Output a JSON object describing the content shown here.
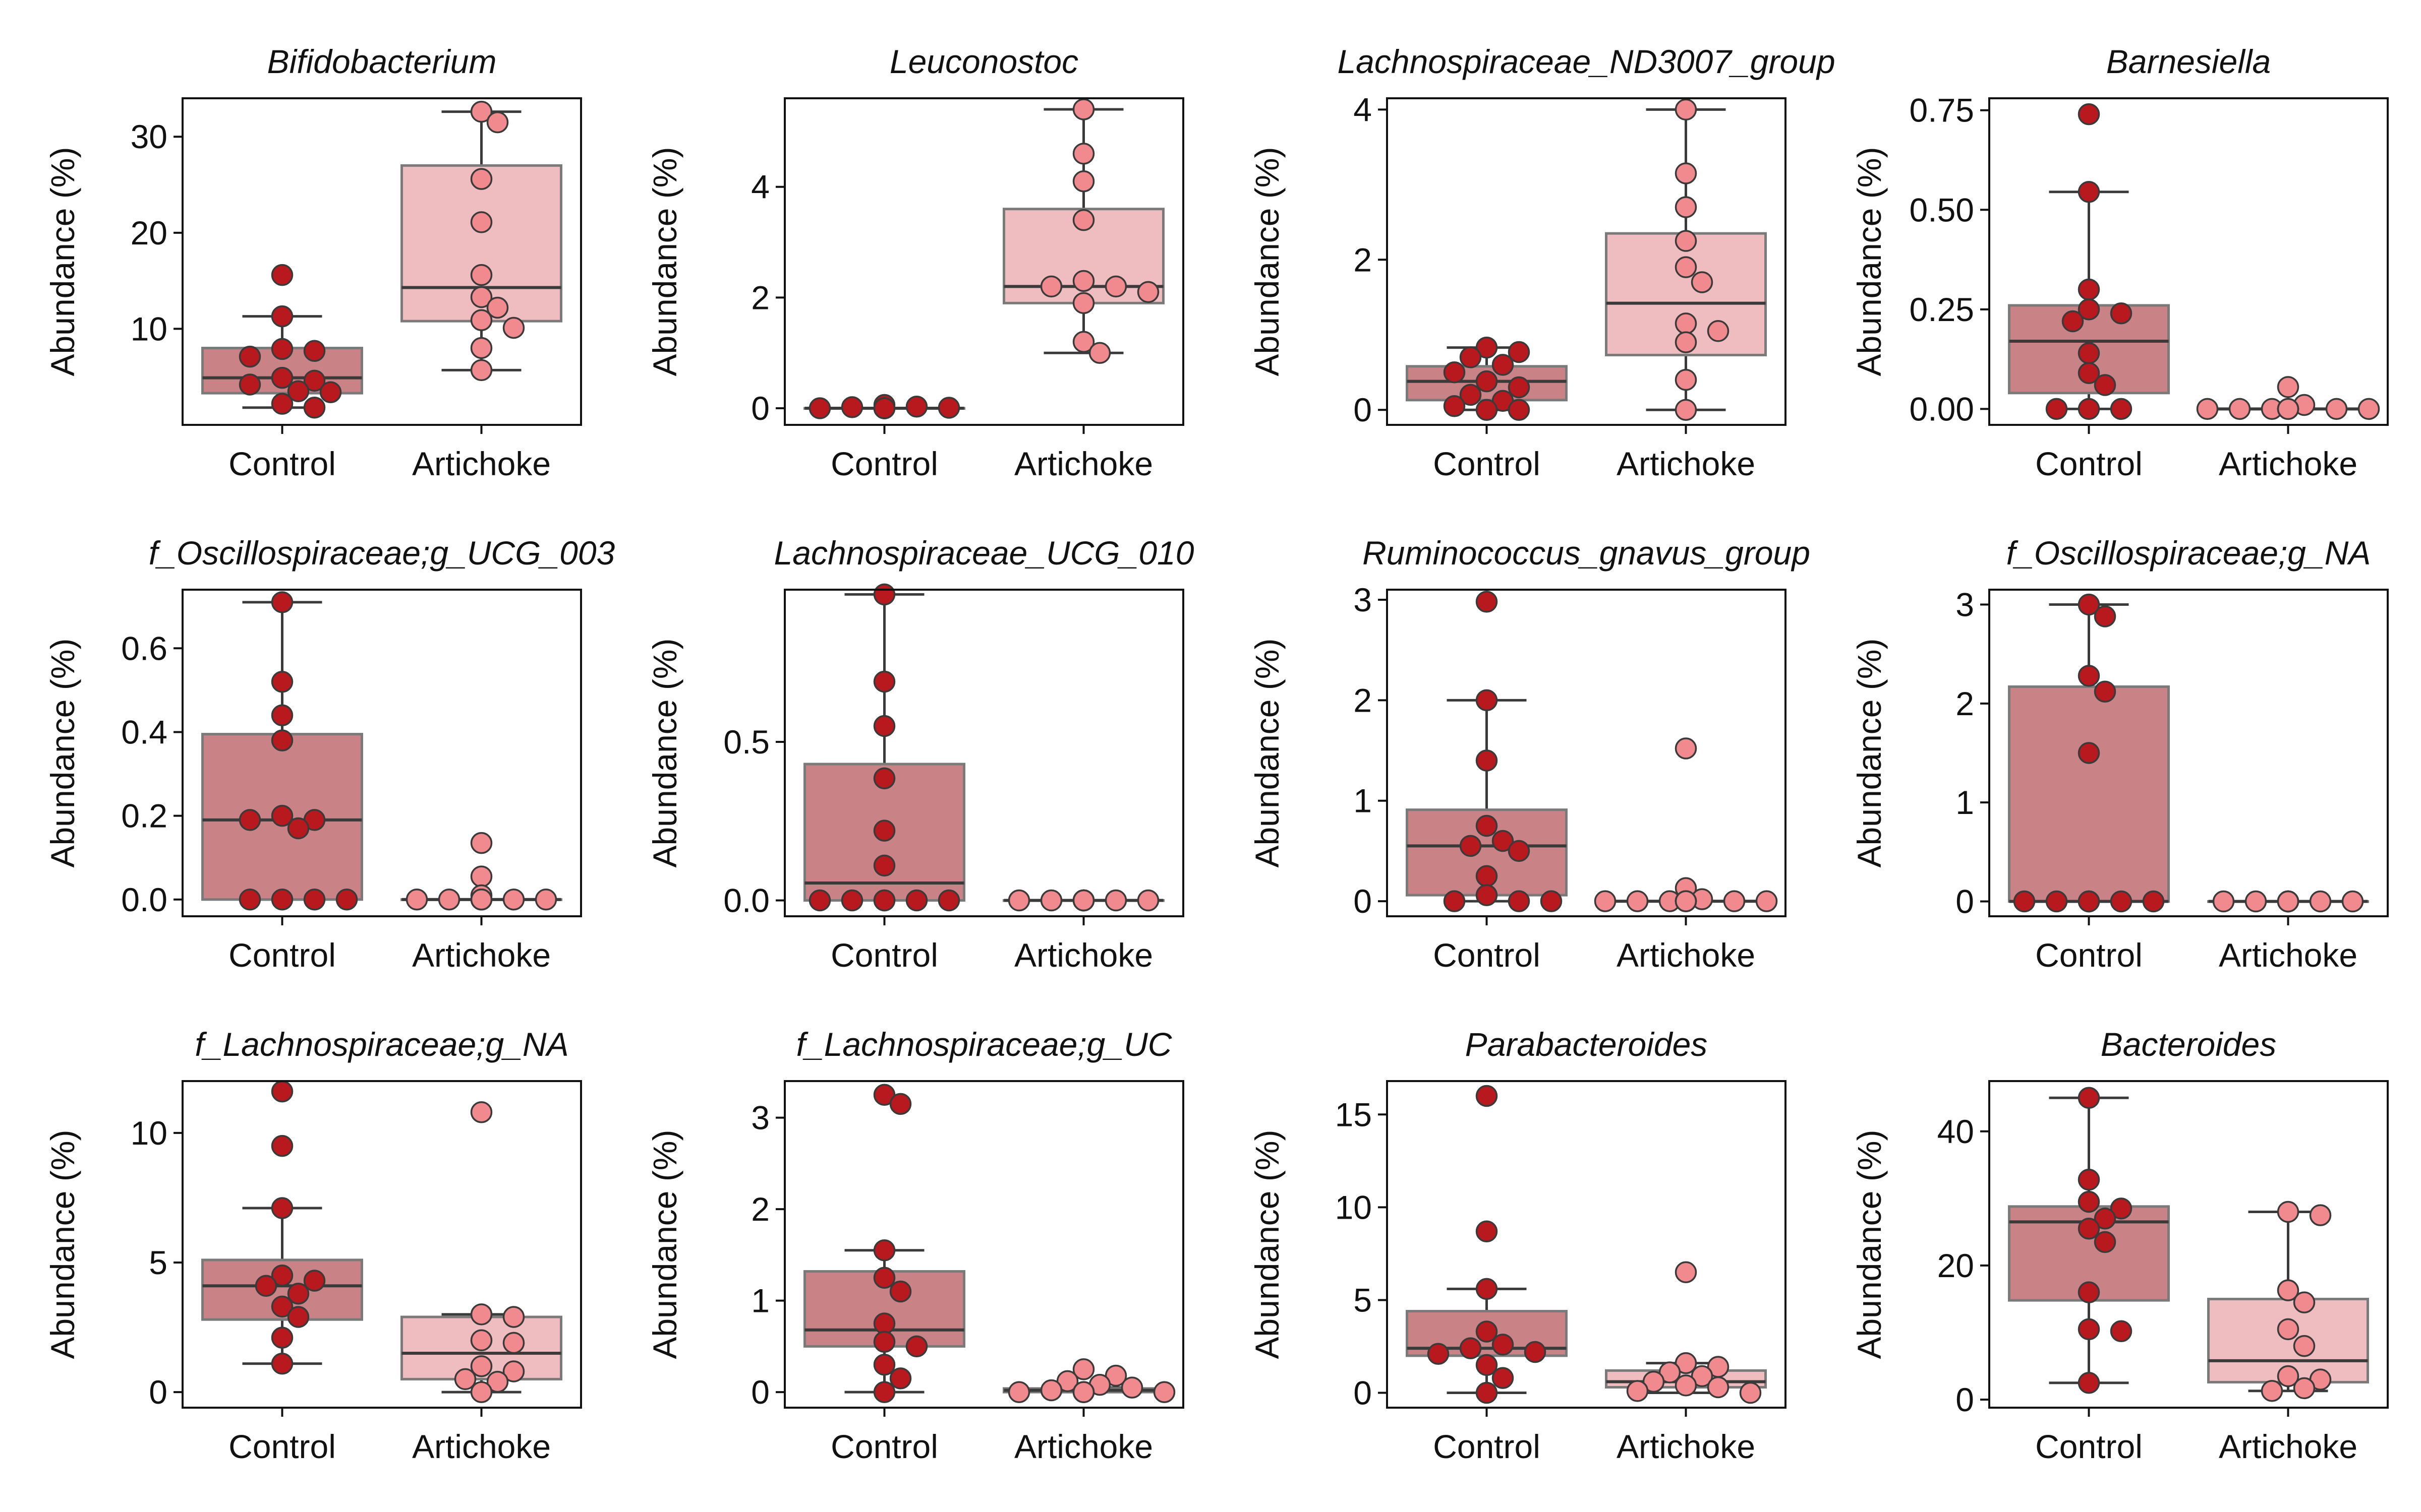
{
  "colors": {
    "control_box": "#c98286",
    "artichoke_box": "#efbcbf",
    "control_dot": "#b8191f",
    "artichoke_dot": "#f08a8e"
  },
  "chart_data": [
    {
      "type": "box",
      "title": "Bifidobacterium",
      "ylabel": "Abundance (%)",
      "categories": [
        "Control",
        "Artichoke"
      ],
      "ylim": [
        0,
        34
      ],
      "yticks": [
        10,
        20,
        30
      ],
      "series": [
        {
          "name": "Control",
          "box": {
            "whislo": 1.8,
            "q1": 3.3,
            "med": 4.9,
            "q3": 8.0,
            "whishi": 11.3
          },
          "points": [
            15.6,
            11.3,
            7.9,
            7.7,
            7.1,
            4.9,
            4.6,
            4.2,
            3.5,
            3.4,
            2.2,
            1.8
          ]
        },
        {
          "name": "Artichoke",
          "box": {
            "whislo": 5.7,
            "q1": 10.8,
            "med": 14.3,
            "q3": 27.0,
            "whishi": 32.6
          },
          "points": [
            32.6,
            31.5,
            25.6,
            21.1,
            15.6,
            13.3,
            12.2,
            10.9,
            10.1,
            8.0,
            5.7
          ]
        }
      ]
    },
    {
      "type": "box",
      "title": "Leuconostoc",
      "ylabel": "Abundance (%)",
      "categories": [
        "Control",
        "Artichoke"
      ],
      "ylim": [
        -0.3,
        5.6
      ],
      "yticks": [
        0,
        2,
        4
      ],
      "series": [
        {
          "name": "Control",
          "box": {
            "whislo": 0,
            "q1": 0,
            "med": 0,
            "q3": 0,
            "whishi": 0
          },
          "points": [
            0.06,
            0.03,
            0.02,
            0.01,
            0.0,
            0.0,
            0.0,
            0.0,
            0.0,
            0.0,
            0.0,
            0.0
          ]
        },
        {
          "name": "Artichoke",
          "box": {
            "whislo": 1.0,
            "q1": 1.9,
            "med": 2.2,
            "q3": 3.6,
            "whishi": 5.4
          },
          "points": [
            5.4,
            4.6,
            4.1,
            3.4,
            2.3,
            2.2,
            2.2,
            2.1,
            1.9,
            1.2,
            1.0
          ]
        }
      ]
    },
    {
      "type": "box",
      "title": "Lachnospiraceae_ND3007_group",
      "ylabel": "Abundance (%)",
      "categories": [
        "Control",
        "Artichoke"
      ],
      "ylim": [
        -0.2,
        4.15
      ],
      "yticks": [
        0,
        2,
        4
      ],
      "series": [
        {
          "name": "Control",
          "box": {
            "whislo": 0,
            "q1": 0.13,
            "med": 0.38,
            "q3": 0.58,
            "whishi": 0.83
          },
          "points": [
            0.83,
            0.77,
            0.7,
            0.6,
            0.5,
            0.38,
            0.3,
            0.2,
            0.12,
            0.05,
            0.0,
            0.0
          ]
        },
        {
          "name": "Artichoke",
          "box": {
            "whislo": 0,
            "q1": 0.73,
            "med": 1.42,
            "q3": 2.35,
            "whishi": 4.0
          },
          "points": [
            4.0,
            3.15,
            2.7,
            2.25,
            1.9,
            1.7,
            1.15,
            1.05,
            0.9,
            0.4,
            0.0
          ]
        }
      ]
    },
    {
      "type": "box",
      "title": "Barnesiella",
      "ylabel": "Abundance (%)",
      "categories": [
        "Control",
        "Artichoke"
      ],
      "ylim": [
        -0.04,
        0.78
      ],
      "yticks": [
        0.0,
        0.25,
        0.5,
        0.75
      ],
      "series": [
        {
          "name": "Control",
          "box": {
            "whislo": 0,
            "q1": 0.04,
            "med": 0.17,
            "q3": 0.26,
            "whishi": 0.545
          },
          "points": [
            0.74,
            0.545,
            0.3,
            0.25,
            0.24,
            0.22,
            0.14,
            0.09,
            0.06,
            0.0,
            0.0,
            0.0
          ]
        },
        {
          "name": "Artichoke",
          "box": {
            "whislo": 0,
            "q1": 0,
            "med": 0,
            "q3": 0,
            "whishi": 0
          },
          "points": [
            0.055,
            0.01,
            0.0,
            0.0,
            0.0,
            0.0,
            0.0,
            0.0,
            0.0,
            0.0,
            0.0
          ]
        }
      ]
    },
    {
      "type": "box",
      "title": "f_Oscillospiraceae;g_UCG_003",
      "ylabel": "Abundance (%)",
      "categories": [
        "Control",
        "Artichoke"
      ],
      "ylim": [
        -0.04,
        0.74
      ],
      "yticks": [
        0.0,
        0.2,
        0.4,
        0.6
      ],
      "series": [
        {
          "name": "Control",
          "box": {
            "whislo": 0,
            "q1": 0,
            "med": 0.19,
            "q3": 0.395,
            "whishi": 0.71
          },
          "points": [
            0.71,
            0.52,
            0.44,
            0.38,
            0.2,
            0.19,
            0.19,
            0.17,
            0.0,
            0.0,
            0.0,
            0.0
          ]
        },
        {
          "name": "Artichoke",
          "box": {
            "whislo": 0,
            "q1": 0,
            "med": 0,
            "q3": 0,
            "whishi": 0
          },
          "points": [
            0.135,
            0.055,
            0.01,
            0.0,
            0.0,
            0.0,
            0.0,
            0.0,
            0.0,
            0.0,
            0.0
          ]
        }
      ]
    },
    {
      "type": "box",
      "title": "Lachnospiraceae_UCG_010",
      "ylabel": "Abundance (%)",
      "categories": [
        "Control",
        "Artichoke"
      ],
      "ylim": [
        -0.05,
        0.98
      ],
      "yticks": [
        0.0,
        0.5
      ],
      "series": [
        {
          "name": "Control",
          "box": {
            "whislo": 0,
            "q1": 0,
            "med": 0.055,
            "q3": 0.43,
            "whishi": 0.965
          },
          "points": [
            0.965,
            0.69,
            0.55,
            0.385,
            0.22,
            0.11,
            0.0,
            0.0,
            0.0,
            0.0,
            0.0,
            0.0
          ]
        },
        {
          "name": "Artichoke",
          "box": {
            "whislo": 0,
            "q1": 0,
            "med": 0,
            "q3": 0,
            "whishi": 0
          },
          "points": [
            0.0,
            0.0,
            0.0,
            0.0,
            0.0,
            0.0,
            0.0,
            0.0,
            0.0,
            0.0,
            0.0
          ]
        }
      ]
    },
    {
      "type": "box",
      "title": "Ruminococcus_gnavus_group",
      "ylabel": "Abundance (%)",
      "categories": [
        "Control",
        "Artichoke"
      ],
      "ylim": [
        -0.15,
        3.1
      ],
      "yticks": [
        0,
        1,
        2,
        3
      ],
      "series": [
        {
          "name": "Control",
          "box": {
            "whislo": 0,
            "q1": 0.06,
            "med": 0.55,
            "q3": 0.91,
            "whishi": 2.0
          },
          "points": [
            2.98,
            2.0,
            1.4,
            0.75,
            0.6,
            0.55,
            0.5,
            0.25,
            0.06,
            0.0,
            0.0,
            0.0
          ]
        },
        {
          "name": "Artichoke",
          "box": {
            "whislo": 0,
            "q1": 0,
            "med": 0,
            "q3": 0,
            "whishi": 0
          },
          "points": [
            1.52,
            0.13,
            0.02,
            0.0,
            0.0,
            0.0,
            0.0,
            0.0,
            0.0,
            0.0,
            0.0
          ]
        }
      ]
    },
    {
      "type": "box",
      "title": "f_Oscillospiraceae;g_NA",
      "ylabel": "Abundance (%)",
      "categories": [
        "Control",
        "Artichoke"
      ],
      "ylim": [
        -0.15,
        3.15
      ],
      "yticks": [
        0,
        1,
        2,
        3
      ],
      "series": [
        {
          "name": "Control",
          "box": {
            "whislo": 0,
            "q1": 0,
            "med": 0,
            "q3": 2.17,
            "whishi": 3.0
          },
          "points": [
            3.0,
            2.88,
            2.28,
            2.12,
            1.5,
            0.0,
            0.0,
            0.0,
            0.0,
            0.0,
            0.0,
            0.0
          ]
        },
        {
          "name": "Artichoke",
          "box": {
            "whislo": 0,
            "q1": 0,
            "med": 0,
            "q3": 0,
            "whishi": 0
          },
          "points": [
            0.0,
            0.0,
            0.0,
            0.0,
            0.0,
            0.0,
            0.0,
            0.0,
            0.0,
            0.0,
            0.0
          ]
        }
      ]
    },
    {
      "type": "box",
      "title": "f_Lachnospiraceae;g_NA",
      "ylabel": "Abundance (%)",
      "categories": [
        "Control",
        "Artichoke"
      ],
      "ylim": [
        -0.6,
        12.0
      ],
      "yticks": [
        0,
        5,
        10
      ],
      "series": [
        {
          "name": "Control",
          "box": {
            "whislo": 1.1,
            "q1": 2.8,
            "med": 4.1,
            "q3": 5.1,
            "whishi": 7.1
          },
          "points": [
            11.6,
            9.5,
            7.1,
            4.5,
            4.3,
            4.1,
            3.8,
            3.3,
            2.9,
            2.1,
            1.1
          ]
        },
        {
          "name": "Artichoke",
          "box": {
            "whislo": 0,
            "q1": 0.5,
            "med": 1.5,
            "q3": 2.9,
            "whishi": 3.0
          },
          "points": [
            10.8,
            3.0,
            2.9,
            2.0,
            1.9,
            1.0,
            0.8,
            0.5,
            0.4,
            0.0
          ]
        }
      ]
    },
    {
      "type": "box",
      "title": "f_Lachnospiraceae;g_UC",
      "ylabel": "Abundance (%)",
      "categories": [
        "Control",
        "Artichoke"
      ],
      "ylim": [
        -0.17,
        3.4
      ],
      "yticks": [
        0,
        1,
        2,
        3
      ],
      "series": [
        {
          "name": "Control",
          "box": {
            "whislo": 0,
            "q1": 0.5,
            "med": 0.68,
            "q3": 1.32,
            "whishi": 1.55
          },
          "points": [
            3.25,
            3.15,
            1.55,
            1.25,
            1.1,
            0.75,
            0.55,
            0.5,
            0.3,
            0.15,
            0.0
          ]
        },
        {
          "name": "Artichoke",
          "box": {
            "whislo": 0,
            "q1": 0,
            "med": 0.02,
            "q3": 0.04,
            "whishi": 0.05
          },
          "points": [
            0.25,
            0.18,
            0.12,
            0.08,
            0.05,
            0.02,
            0.0,
            0.0,
            0.0,
            0.0,
            0.0
          ]
        }
      ]
    },
    {
      "type": "box",
      "title": "Parabacteroides",
      "ylabel": "Abundance (%)",
      "categories": [
        "Control",
        "Artichoke"
      ],
      "ylim": [
        -0.8,
        16.8
      ],
      "yticks": [
        0,
        5,
        10,
        15
      ],
      "series": [
        {
          "name": "Control",
          "box": {
            "whislo": 0,
            "q1": 2.0,
            "med": 2.4,
            "q3": 4.4,
            "whishi": 5.6
          },
          "points": [
            16.0,
            8.7,
            5.6,
            3.3,
            2.6,
            2.4,
            2.2,
            2.1,
            1.5,
            0.8,
            0.0
          ]
        },
        {
          "name": "Artichoke",
          "box": {
            "whislo": 0,
            "q1": 0.3,
            "med": 0.6,
            "q3": 1.2,
            "whishi": 1.6
          },
          "points": [
            6.5,
            1.6,
            1.4,
            1.1,
            0.9,
            0.6,
            0.4,
            0.3,
            0.1,
            0.0
          ]
        }
      ]
    },
    {
      "type": "box",
      "title": "Bacteroides",
      "ylabel": "Abundance (%)",
      "categories": [
        "Control",
        "Artichoke"
      ],
      "ylim": [
        -1.2,
        47.5
      ],
      "yticks": [
        0,
        20,
        40
      ],
      "series": [
        {
          "name": "Control",
          "box": {
            "whislo": 2.5,
            "q1": 14.8,
            "med": 26.5,
            "q3": 28.8,
            "whishi": 45.0
          },
          "points": [
            45.0,
            32.8,
            29.5,
            28.5,
            27.0,
            25.5,
            23.5,
            16.0,
            10.5,
            10.2,
            2.5
          ]
        },
        {
          "name": "Artichoke",
          "box": {
            "whislo": 1.3,
            "q1": 2.6,
            "med": 5.8,
            "q3": 15.0,
            "whishi": 28.0
          },
          "points": [
            28.0,
            27.5,
            16.3,
            14.5,
            10.5,
            8.0,
            3.5,
            3.0,
            1.7,
            1.3
          ]
        }
      ]
    }
  ]
}
